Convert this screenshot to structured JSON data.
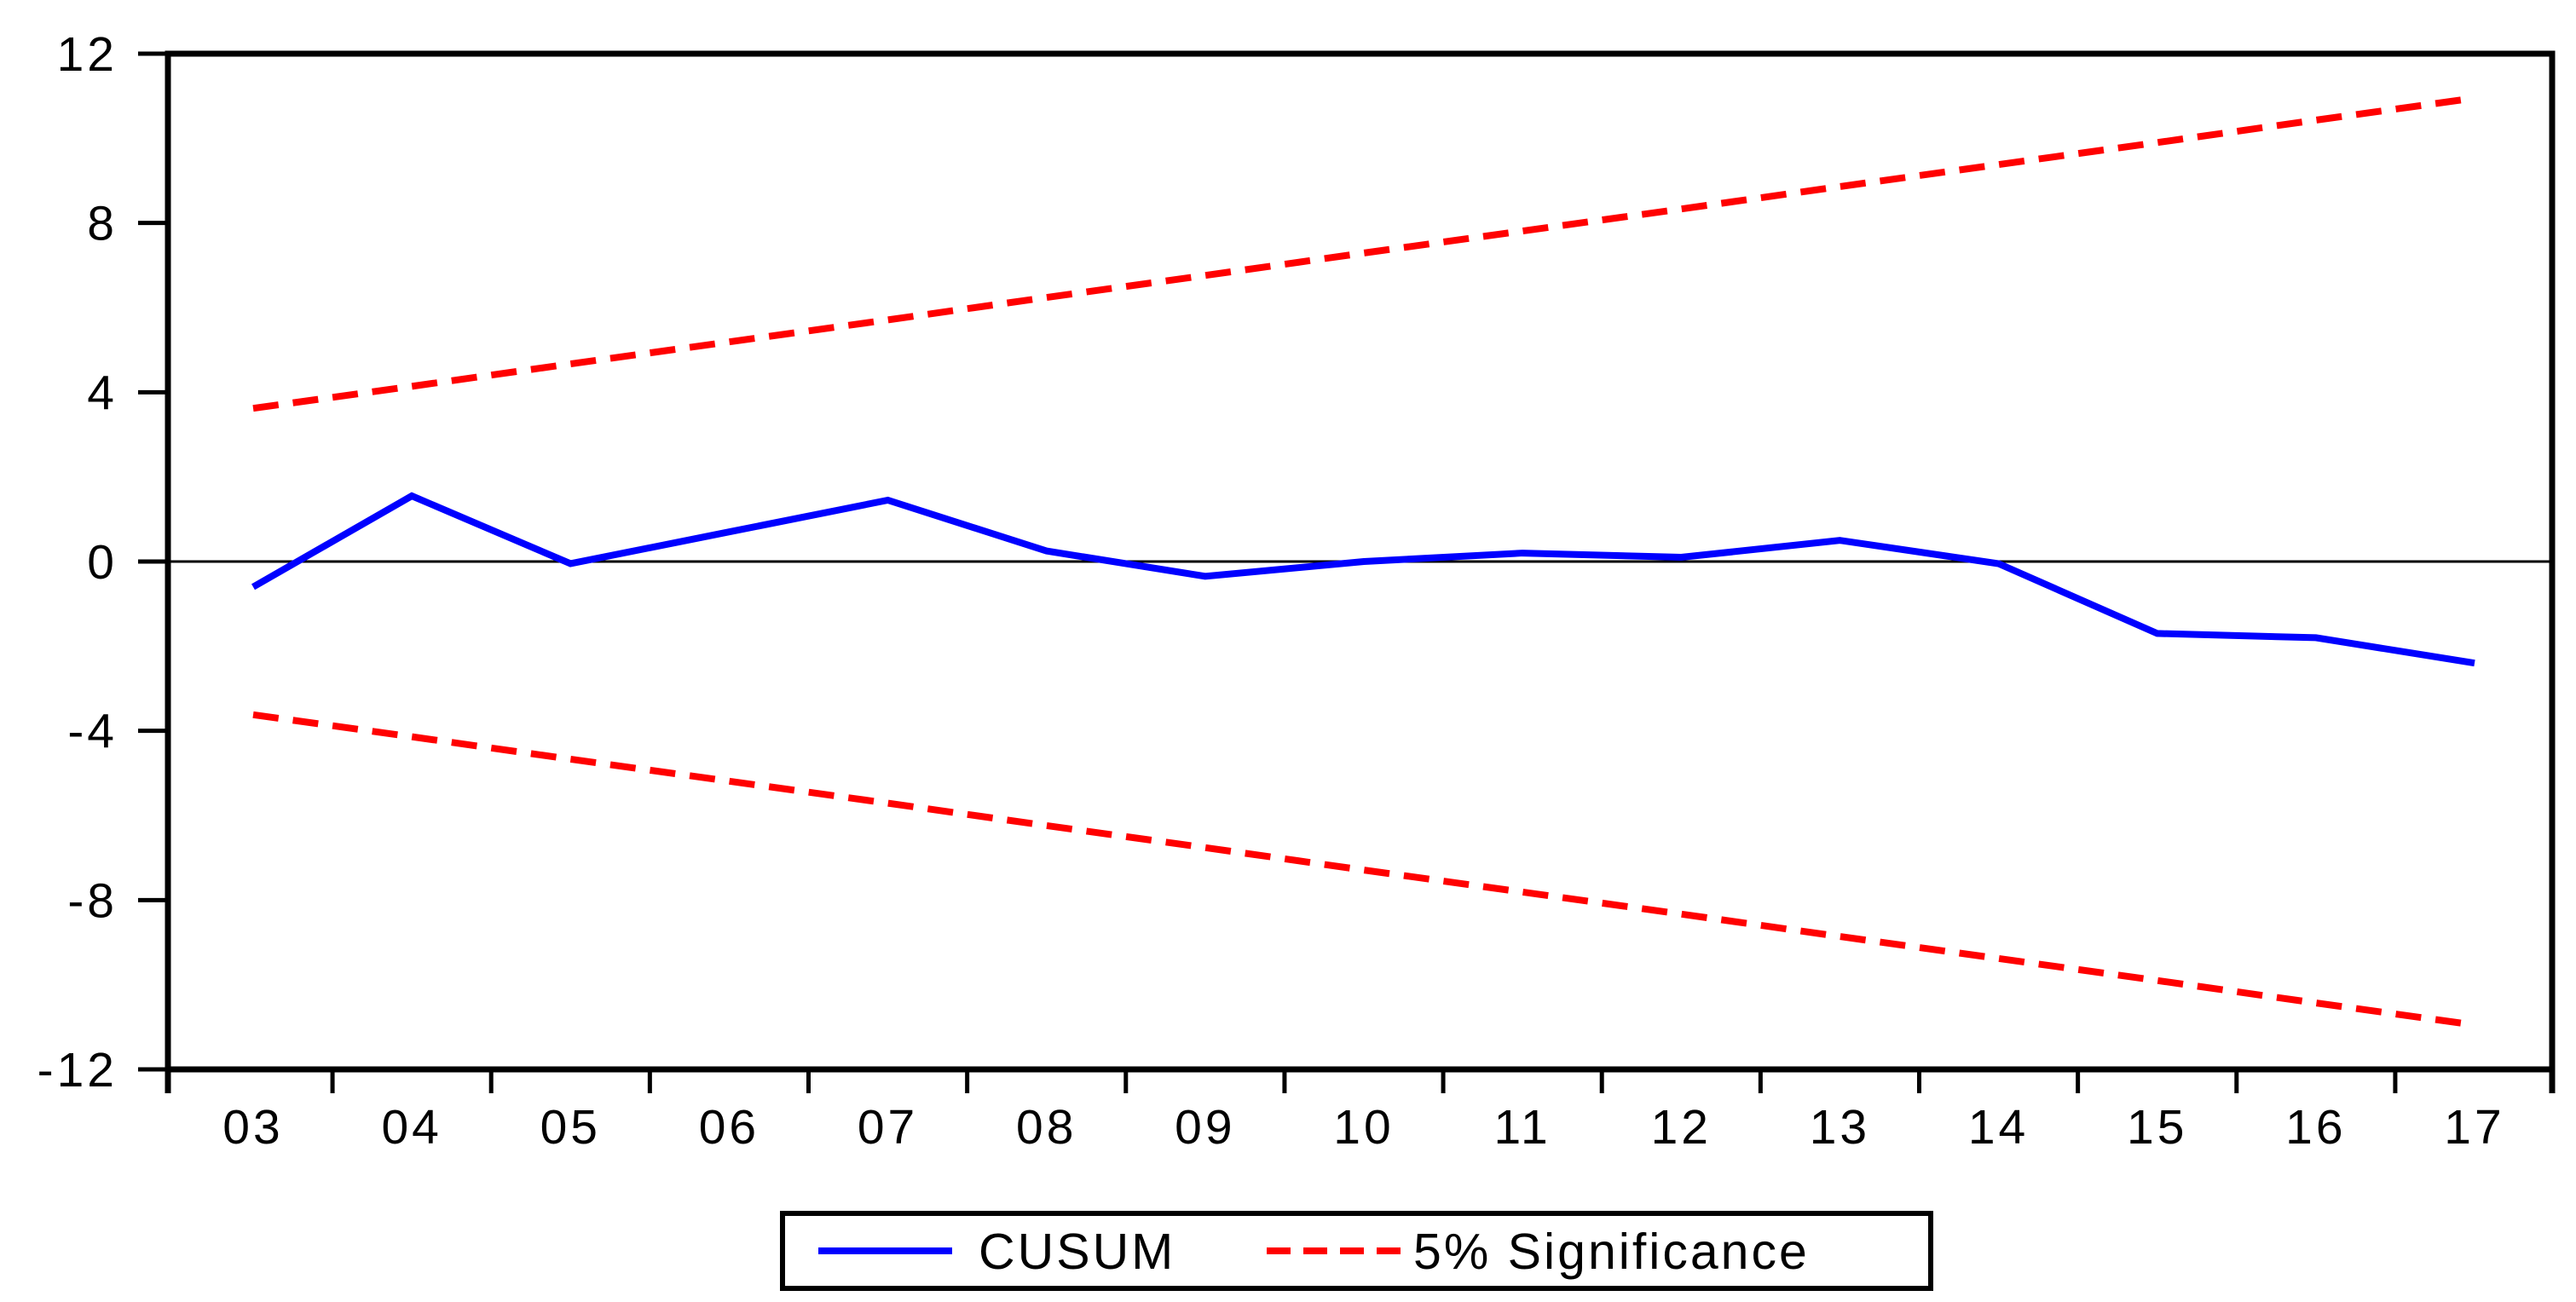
{
  "chart_data": {
    "type": "line",
    "title": "",
    "xlabel": "",
    "ylabel": "",
    "x": {
      "categories": [
        "03",
        "04",
        "05",
        "06",
        "07",
        "08",
        "09",
        "10",
        "11",
        "12",
        "13",
        "14",
        "15",
        "16",
        "17"
      ],
      "tick_style": "between-categories"
    },
    "y_axis": {
      "min": -12,
      "max": 12,
      "ticks": [
        12,
        8,
        4,
        0,
        -4,
        -8,
        -12
      ],
      "tick_labels": [
        "12",
        "8",
        "4",
        "0",
        "-4",
        "-8",
        "-12"
      ]
    },
    "zero_line": true,
    "grid": false,
    "series": [
      {
        "name": "CUSUM",
        "color": "#0000ff",
        "line_style": "solid",
        "values": [
          -0.6,
          1.55,
          -0.05,
          0.7,
          1.45,
          0.25,
          -0.35,
          0.0,
          0.2,
          0.1,
          0.5,
          -0.05,
          -1.7,
          -1.8,
          -2.4
        ]
      },
      {
        "name": "5% Significance (upper bound)",
        "color": "#ff0000",
        "line_style": "dashed",
        "values": [
          3.62,
          4.14,
          4.67,
          5.19,
          5.71,
          6.24,
          6.76,
          7.29,
          7.81,
          8.33,
          8.86,
          9.38,
          9.9,
          10.43,
          10.95
        ]
      },
      {
        "name": "5% Significance (lower bound)",
        "color": "#ff0000",
        "line_style": "dashed",
        "values": [
          -3.62,
          -4.14,
          -4.67,
          -5.19,
          -5.71,
          -6.24,
          -6.76,
          -7.29,
          -7.81,
          -8.33,
          -8.86,
          -9.38,
          -9.9,
          -10.43,
          -10.95
        ]
      }
    ],
    "legend": {
      "position": "bottom-center",
      "border": true,
      "items": [
        {
          "label": "CUSUM",
          "color": "#0000ff",
          "line_style": "solid"
        },
        {
          "label": "5% Significance",
          "color": "#ff0000",
          "line_style": "dashed"
        }
      ]
    },
    "colors": {
      "axis": "#000000",
      "background": "#ffffff"
    }
  }
}
